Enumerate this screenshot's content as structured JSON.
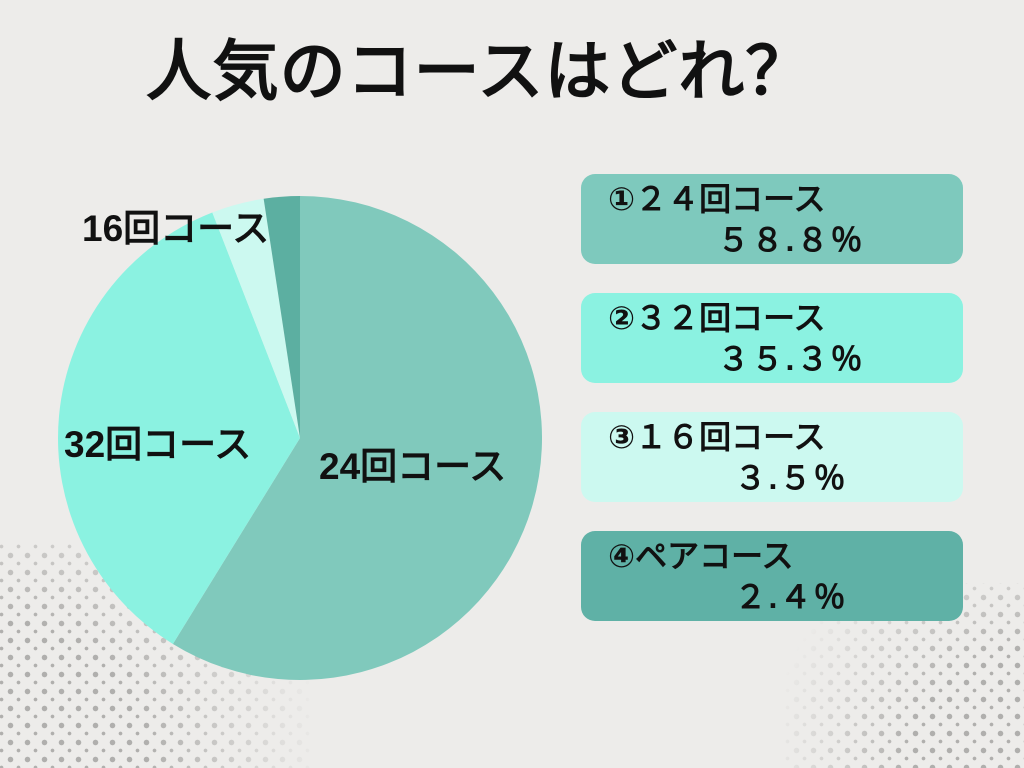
{
  "title": "人気のコースはどれ？",
  "background_color": "#edecea",
  "chart_data": {
    "type": "pie",
    "title": "人気のコースはどれ？",
    "categories": [
      "24回コース",
      "32回コース",
      "16回コース",
      "ペアコース"
    ],
    "values": [
      58.8,
      35.3,
      3.5,
      2.4
    ],
    "unit": "%",
    "colors": [
      "#80c9bc",
      "#8bf2e1",
      "#ccf9f0",
      "#5cafa1"
    ],
    "start_angle": "12-oclock",
    "direction": "clockwise",
    "legend_position": "right"
  },
  "pie_labels": {
    "label_16": "16回コース",
    "label_32": "32回コース",
    "label_24": "24回コース"
  },
  "legend": {
    "items": [
      {
        "label": "①２４回コース",
        "value": "５８.８％",
        "color": "#7ec9bd"
      },
      {
        "label": "②３２回コース",
        "value": "３５.３％",
        "color": "#8bf2e1"
      },
      {
        "label": "③１６回コース",
        "value": "３.５％",
        "color": "#ccf9f0"
      },
      {
        "label": "④ペアコース",
        "value": "２.４％",
        "color": "#5fb1a6"
      }
    ]
  }
}
